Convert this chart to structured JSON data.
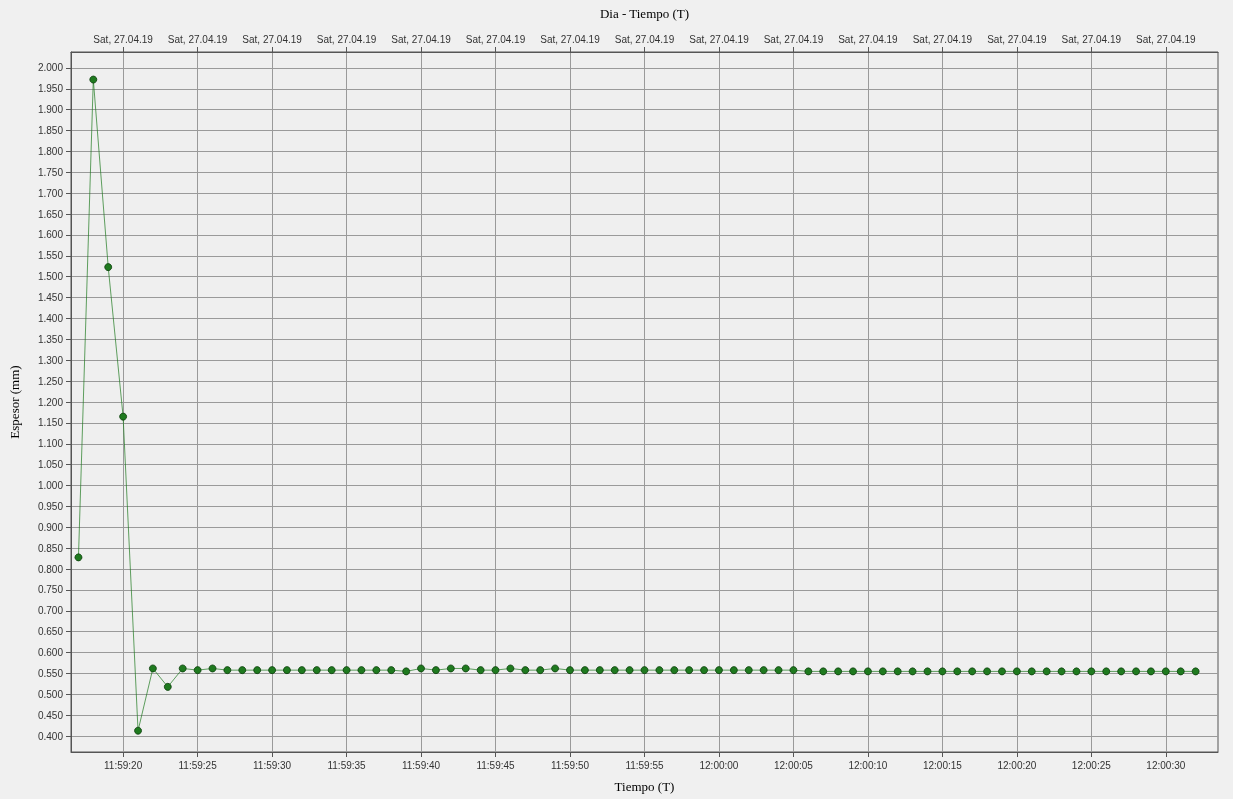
{
  "chart_data": {
    "type": "line",
    "xlabel": "Tiempo (T)",
    "x2label": "Dia - Tiempo (T)",
    "ylabel": "Espesor (mm)",
    "x": [
      11.988056,
      11.988333,
      11.988611,
      11.988889,
      11.989167,
      11.989444,
      11.989722,
      11.99,
      11.990278,
      11.990556,
      11.990833,
      11.991111,
      11.991389,
      11.991667,
      11.991944,
      11.992222,
      11.9925,
      11.992778,
      11.993056,
      11.993333,
      11.993611,
      11.993889,
      11.994167,
      11.994444,
      11.994722,
      11.995,
      11.995278,
      11.995556,
      11.995833,
      11.996111,
      11.996389,
      11.996667,
      11.996944,
      11.997222,
      11.9975,
      11.997778,
      11.998056,
      11.998333,
      11.998611,
      11.998889,
      11.999167,
      11.999444,
      11.999722,
      12.0,
      12.000278,
      12.000556,
      12.000833,
      12.001111,
      12.001389,
      12.001667,
      12.001944,
      12.002222,
      12.0025,
      12.002778,
      12.003056,
      12.003333,
      12.003611,
      12.003889,
      12.004167,
      12.004444,
      12.004722,
      12.005,
      12.005278,
      12.005556,
      12.005833,
      12.006111,
      12.006389,
      12.006667,
      12.006944,
      12.007222,
      12.0075,
      12.007778,
      12.008056,
      12.008333,
      12.008611,
      12.008889
    ],
    "series": [
      {
        "color": "#1f7a1f",
        "values": [
          0.828,
          1.972,
          1.523,
          1.165,
          0.413,
          0.562,
          0.518,
          0.562,
          0.558,
          0.562,
          0.558,
          0.558,
          0.558,
          0.558,
          0.558,
          0.558,
          0.558,
          0.558,
          0.558,
          0.558,
          0.558,
          0.558,
          0.555,
          0.562,
          0.558,
          0.562,
          0.562,
          0.558,
          0.558,
          0.562,
          0.558,
          0.558,
          0.562,
          0.558,
          0.558,
          0.558,
          0.558,
          0.558,
          0.558,
          0.558,
          0.558,
          0.558,
          0.558,
          0.558,
          0.558,
          0.558,
          0.558,
          0.558,
          0.558,
          0.555,
          0.555,
          0.555,
          0.555,
          0.555,
          0.555,
          0.555,
          0.555,
          0.555,
          0.555,
          0.555,
          0.555,
          0.555,
          0.555,
          0.555,
          0.555,
          0.555,
          0.555,
          0.555,
          0.555,
          0.555,
          0.555,
          0.555,
          0.555,
          0.555,
          0.555,
          0.555
        ]
      }
    ],
    "xlim": [
      11.987917,
      12.009306
    ],
    "xticks": [
      {
        "value": 11.988889,
        "label": "11:59:20"
      },
      {
        "value": 11.990278,
        "label": "11:59:25"
      },
      {
        "value": 11.991667,
        "label": "11:59:30"
      },
      {
        "value": 11.993056,
        "label": "11:59:35"
      },
      {
        "value": 11.994444,
        "label": "11:59:40"
      },
      {
        "value": 11.995833,
        "label": "11:59:45"
      },
      {
        "value": 11.997222,
        "label": "11:59:50"
      },
      {
        "value": 11.998611,
        "label": "11:59:55"
      },
      {
        "value": 12.0,
        "label": "12:00:00"
      },
      {
        "value": 12.001389,
        "label": "12:00:05"
      },
      {
        "value": 12.002778,
        "label": "12:00:10"
      },
      {
        "value": 12.004167,
        "label": "12:00:15"
      },
      {
        "value": 12.005556,
        "label": "12:00:20"
      },
      {
        "value": 12.006944,
        "label": "12:00:25"
      },
      {
        "value": 12.008333,
        "label": "12:00:30"
      }
    ],
    "annotations": [
      "Sat, 27.04.19",
      "Sat, 27.04.19",
      "Sat, 27.04.19",
      "Sat, 27.04.19",
      "Sat, 27.04.19",
      "Sat, 27.04.19",
      "Sat, 27.04.19",
      "Sat, 27.04.19",
      "Sat, 27.04.19",
      "Sat, 27.04.19",
      "Sat, 27.04.19",
      "Sat, 27.04.19",
      "Sat, 27.04.19",
      "Sat, 27.04.19",
      "Sat, 27.04.19"
    ],
    "ylim": [
      0.362,
      2.038
    ],
    "yticks": [
      {
        "value": 0.4,
        "label": "0.400"
      },
      {
        "value": 0.45,
        "label": "0.450"
      },
      {
        "value": 0.5,
        "label": "0.500"
      },
      {
        "value": 0.55,
        "label": "0.550"
      },
      {
        "value": 0.6,
        "label": "0.600"
      },
      {
        "value": 0.65,
        "label": "0.650"
      },
      {
        "value": 0.7,
        "label": "0.700"
      },
      {
        "value": 0.75,
        "label": "0.750"
      },
      {
        "value": 0.8,
        "label": "0.800"
      },
      {
        "value": 0.85,
        "label": "0.850"
      },
      {
        "value": 0.9,
        "label": "0.900"
      },
      {
        "value": 0.95,
        "label": "0.950"
      },
      {
        "value": 1.0,
        "label": "1.000"
      },
      {
        "value": 1.05,
        "label": "1.050"
      },
      {
        "value": 1.1,
        "label": "1.100"
      },
      {
        "value": 1.15,
        "label": "1.150"
      },
      {
        "value": 1.2,
        "label": "1.200"
      },
      {
        "value": 1.25,
        "label": "1.250"
      },
      {
        "value": 1.3,
        "label": "1.300"
      },
      {
        "value": 1.35,
        "label": "1.350"
      },
      {
        "value": 1.4,
        "label": "1.400"
      },
      {
        "value": 1.45,
        "label": "1.450"
      },
      {
        "value": 1.5,
        "label": "1.500"
      },
      {
        "value": 1.55,
        "label": "1.550"
      },
      {
        "value": 1.6,
        "label": "1.600"
      },
      {
        "value": 1.65,
        "label": "1.650"
      },
      {
        "value": 1.7,
        "label": "1.700"
      },
      {
        "value": 1.75,
        "label": "1.750"
      },
      {
        "value": 1.8,
        "label": "1.800"
      },
      {
        "value": 1.85,
        "label": "1.850"
      },
      {
        "value": 1.9,
        "label": "1.900"
      },
      {
        "value": 1.95,
        "label": "1.950"
      },
      {
        "value": 2.0,
        "label": "2.000"
      }
    ],
    "grid": true,
    "marker": "circle",
    "line_style": "solid"
  }
}
